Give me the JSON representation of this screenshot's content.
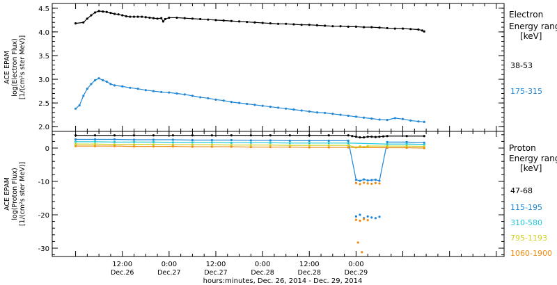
{
  "chart_data": [
    {
      "type": "scatter",
      "ylabel": [
        "ACE EPAM",
        "log(Electron Flux)",
        "[1/(cm²s ster MeV)]"
      ],
      "ylim": [
        1.9,
        4.6
      ],
      "yticks": [
        2.0,
        2.5,
        3.0,
        3.5,
        4.0,
        4.5
      ],
      "ytick_labels": [
        "2.0",
        "2.5",
        "3.0",
        "3.5",
        "4.0",
        "4.5"
      ],
      "legend_title": [
        "Electron",
        "Energy ranges",
        "[keV]"
      ],
      "series": [
        {
          "name": "38-53",
          "color": "#000000",
          "x": [
            0,
            2,
            3,
            4,
            5,
            6,
            7,
            8,
            9,
            10,
            11,
            12,
            13,
            14,
            15,
            16,
            17,
            18,
            19,
            20,
            21,
            22,
            22.5,
            23,
            24,
            26,
            28,
            30,
            32,
            34,
            36,
            38,
            40,
            42,
            44,
            46,
            48,
            50,
            52,
            54,
            56,
            58,
            60,
            62,
            64,
            66,
            68,
            70,
            72,
            74,
            76,
            78,
            80,
            82,
            84,
            86,
            88,
            89,
            89.5
          ],
          "y": [
            4.18,
            4.2,
            4.28,
            4.35,
            4.41,
            4.44,
            4.43,
            4.42,
            4.4,
            4.38,
            4.37,
            4.35,
            4.33,
            4.32,
            4.32,
            4.32,
            4.32,
            4.31,
            4.3,
            4.29,
            4.28,
            4.29,
            4.22,
            4.27,
            4.3,
            4.3,
            4.29,
            4.28,
            4.27,
            4.26,
            4.25,
            4.24,
            4.23,
            4.22,
            4.21,
            4.2,
            4.19,
            4.18,
            4.17,
            4.17,
            4.16,
            4.15,
            4.15,
            4.14,
            4.13,
            4.12,
            4.12,
            4.11,
            4.11,
            4.1,
            4.1,
            4.09,
            4.08,
            4.07,
            4.07,
            4.06,
            4.05,
            4.03,
            4.01
          ]
        },
        {
          "name": "175-315",
          "color": "#1f86d6",
          "x": [
            0,
            1,
            2,
            3,
            4,
            5,
            6,
            7,
            8,
            9,
            10,
            12,
            14,
            16,
            18,
            20,
            22,
            24,
            26,
            28,
            30,
            32,
            34,
            36,
            38,
            40,
            42,
            44,
            46,
            48,
            50,
            52,
            54,
            56,
            58,
            60,
            62,
            64,
            66,
            68,
            70,
            72,
            74,
            76,
            78,
            80,
            82,
            84,
            86,
            88,
            89.5
          ],
          "y": [
            2.38,
            2.45,
            2.65,
            2.8,
            2.9,
            2.98,
            3.02,
            2.98,
            2.95,
            2.9,
            2.87,
            2.85,
            2.82,
            2.8,
            2.77,
            2.75,
            2.73,
            2.72,
            2.7,
            2.68,
            2.65,
            2.62,
            2.6,
            2.57,
            2.55,
            2.52,
            2.5,
            2.48,
            2.46,
            2.44,
            2.42,
            2.4,
            2.38,
            2.36,
            2.34,
            2.32,
            2.3,
            2.29,
            2.27,
            2.25,
            2.23,
            2.21,
            2.19,
            2.17,
            2.15,
            2.14,
            2.18,
            2.16,
            2.13,
            2.11,
            2.1
          ]
        }
      ]
    },
    {
      "type": "scatter",
      "ylabel": [
        "ACE EPAM",
        "log(Proton Flux)",
        "[1/(cm²s ster MeV)]"
      ],
      "ylim": [
        -32.5,
        5
      ],
      "yticks": [
        0,
        -10,
        -20,
        -30
      ],
      "ytick_labels": [
        "0",
        "-10",
        "-20",
        "-30"
      ],
      "legend_title": [
        "Proton",
        "Energy ranges",
        "[keV]"
      ],
      "series": [
        {
          "name": "47-68",
          "color": "#000000",
          "x": [
            0,
            5,
            10,
            15,
            20,
            25,
            30,
            35,
            40,
            45,
            50,
            55,
            60,
            65,
            70,
            71,
            72,
            73,
            74,
            75,
            76,
            77,
            78,
            79,
            80,
            85,
            89.5
          ],
          "y": [
            3.8,
            3.8,
            3.8,
            3.8,
            3.8,
            3.8,
            3.8,
            3.8,
            3.8,
            3.8,
            3.8,
            3.8,
            3.8,
            3.8,
            3.8,
            3.6,
            3.4,
            3.2,
            3.2,
            3.4,
            3.4,
            3.3,
            3.4,
            3.5,
            3.6,
            3.6,
            3.6
          ]
        },
        {
          "name": "115-195",
          "color": "#1f86d6",
          "x": [
            0,
            5,
            10,
            15,
            20,
            25,
            30,
            35,
            40,
            45,
            50,
            55,
            60,
            65,
            70,
            72,
            73,
            74,
            75,
            76,
            77,
            78,
            80,
            85,
            89.5,
            72,
            73,
            74,
            75,
            76,
            77,
            78
          ],
          "y": [
            2.6,
            2.6,
            2.6,
            2.5,
            2.5,
            2.5,
            2.4,
            2.4,
            2.4,
            2.3,
            2.3,
            2.2,
            2.2,
            2.2,
            2.2,
            -9.5,
            -9.8,
            -9.4,
            -9.7,
            -9.6,
            -9.5,
            -9.8,
            1.8,
            1.8,
            1.6,
            -20.5,
            -20,
            -21,
            -20.5,
            -20.8,
            -21,
            -20.6
          ]
        },
        {
          "name": "310-580",
          "color": "#20c8d8",
          "x": [
            0,
            5,
            10,
            15,
            20,
            25,
            30,
            35,
            40,
            45,
            50,
            55,
            60,
            65,
            70,
            80,
            85,
            89.5
          ],
          "y": [
            1.9,
            1.9,
            1.8,
            1.8,
            1.8,
            1.7,
            1.7,
            1.7,
            1.6,
            1.6,
            1.6,
            1.5,
            1.5,
            1.5,
            1.5,
            1.2,
            1.2,
            1.1
          ]
        },
        {
          "name": "795-1193",
          "color": "#d0d020",
          "x": [
            0,
            5,
            10,
            15,
            20,
            25,
            30,
            35,
            40,
            45,
            50,
            55,
            60,
            65,
            70,
            72,
            73,
            74,
            75,
            80,
            85,
            89.5
          ],
          "y": [
            1.2,
            1.2,
            1.1,
            1.1,
            1.1,
            1.0,
            1.0,
            1.0,
            0.9,
            0.9,
            0.9,
            0.8,
            0.8,
            0.8,
            0.8,
            0.2,
            0.5,
            0.3,
            0.6,
            0.6,
            0.6,
            0.5
          ]
        },
        {
          "name": "1060-1900",
          "color": "#ee8a10",
          "x": [
            0,
            5,
            10,
            15,
            20,
            25,
            30,
            35,
            40,
            45,
            50,
            55,
            60,
            65,
            70,
            80,
            85,
            89.5,
            72,
            73,
            74,
            75,
            76,
            77,
            78,
            72,
            73,
            74,
            75,
            72.5,
            73.5
          ],
          "y": [
            0.6,
            0.6,
            0.6,
            0.5,
            0.5,
            0.5,
            0.4,
            0.4,
            0.4,
            0.3,
            0.3,
            0.3,
            0.2,
            0.2,
            0.2,
            0.1,
            0.1,
            0.0,
            -10.5,
            -10.8,
            -10.4,
            -10.6,
            -10.7,
            -10.5,
            -10.6,
            -21.5,
            -21.8,
            -21.3,
            -21.6,
            -28.3,
            -31.2
          ]
        }
      ]
    }
  ],
  "x_axis": {
    "range_hours": [
      -6,
      110
    ],
    "ticks": [
      {
        "x": 12,
        "time": "12:00",
        "date": "Dec.26"
      },
      {
        "x": 24,
        "time": "0:00",
        "date": "Dec.27"
      },
      {
        "x": 36,
        "time": "12:00",
        "date": "Dec.27"
      },
      {
        "x": 48,
        "time": "0:00",
        "date": "Dec.28"
      },
      {
        "x": 60,
        "time": "12:00",
        "date": "Dec.28"
      },
      {
        "x": 72,
        "time": "0:00",
        "date": "Dec.29"
      }
    ],
    "label": "hours:minutes, Dec. 26, 2014 - Dec. 29, 2014"
  }
}
